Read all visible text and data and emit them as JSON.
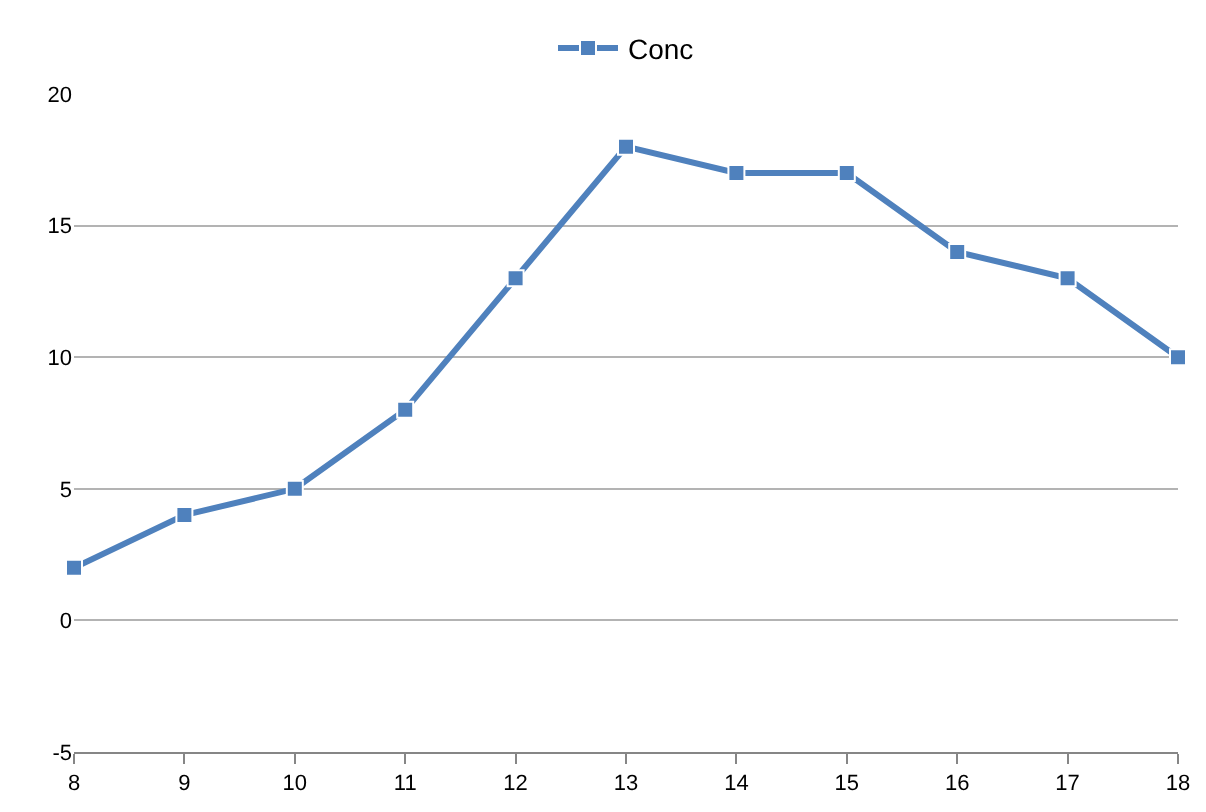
{
  "chart_data": {
    "type": "line",
    "x": [
      8,
      9,
      10,
      11,
      12,
      13,
      14,
      15,
      16,
      17,
      18
    ],
    "series": [
      {
        "name": "Conc",
        "color": "#4f81bd",
        "values": [
          2,
          4,
          5,
          8,
          13,
          18,
          17,
          17,
          14,
          13,
          10
        ]
      }
    ],
    "xlim": [
      8,
      18
    ],
    "xticks": [
      8,
      9,
      10,
      11,
      12,
      13,
      14,
      15,
      16,
      17,
      18
    ],
    "ylim": [
      -5,
      20
    ],
    "yticks": [
      -5,
      0,
      5,
      10,
      15,
      20
    ],
    "grid": "y",
    "legend": "top",
    "marker": "square",
    "line_style": "solid"
  }
}
